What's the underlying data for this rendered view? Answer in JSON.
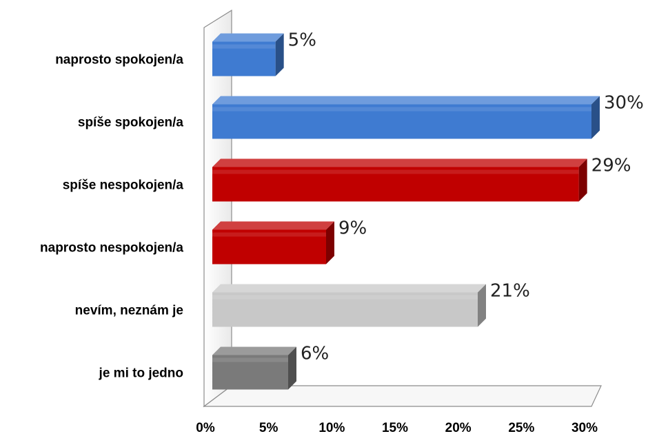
{
  "chart_data": {
    "type": "bar",
    "orientation": "horizontal",
    "categories": [
      "naprosto spokojen/a",
      "spíše spokojen/a",
      "spíše nespokojen/a",
      "naprosto nespokojen/a",
      "nevím, neznám je",
      "je mi to jedno"
    ],
    "values": [
      5,
      30,
      29,
      9,
      21,
      6
    ],
    "value_labels": [
      "5%",
      "30%",
      "29%",
      "9%",
      "21%",
      "6%"
    ],
    "colors": [
      "#3f7bd1",
      "#3f7bd1",
      "#c00000",
      "#c00000",
      "#c8c8c8",
      "#7a7a7a"
    ],
    "xlim": [
      0,
      30
    ],
    "xticks": [
      "0%",
      "5%",
      "10%",
      "15%",
      "20%",
      "25%",
      "30%"
    ],
    "title": "",
    "xlabel": "",
    "ylabel": "",
    "grid": false,
    "style": "3d"
  }
}
